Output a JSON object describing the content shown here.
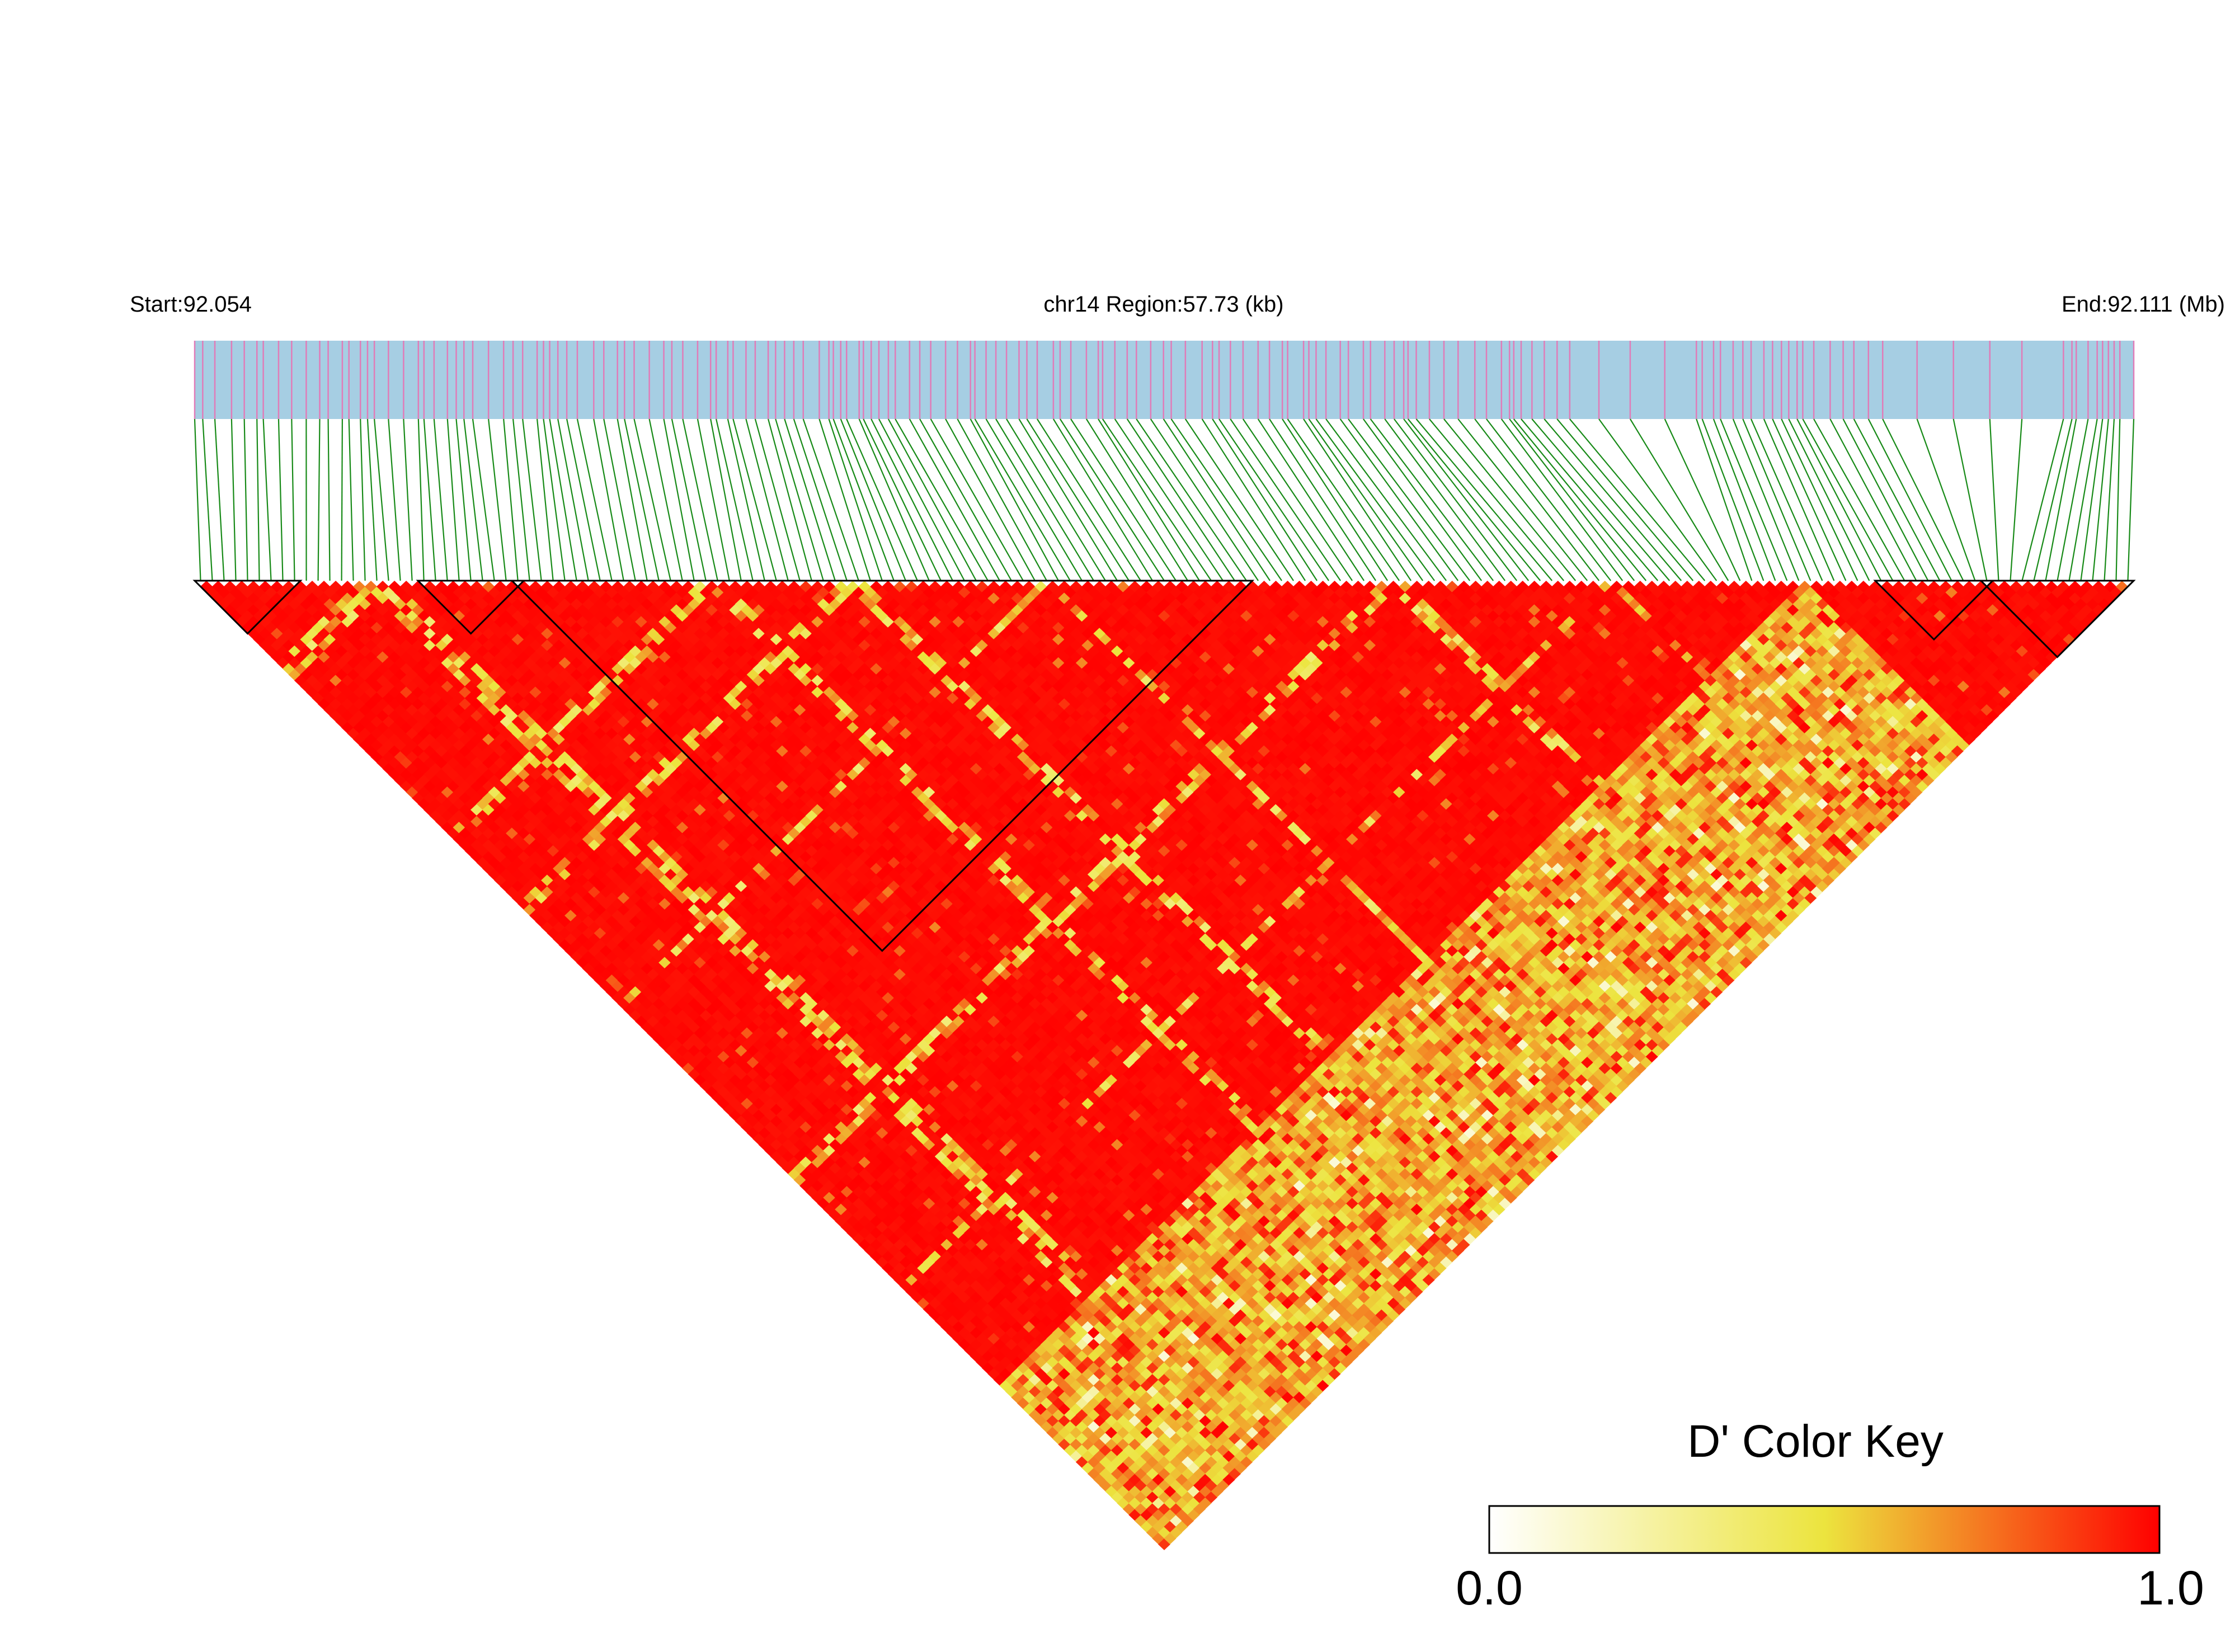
{
  "header": {
    "start_label": "Start:92.054",
    "region_label": "chr14 Region:57.73 (kb)",
    "end_label": "End:92.111 (Mb)"
  },
  "color_key": {
    "title": "D' Color Key",
    "min_label": "0.0",
    "max_label": "1.0",
    "low_color": "#ffffff",
    "mid_color": "#ece43e",
    "high_color": "#ff0000"
  },
  "colors": {
    "track_background": "#a6cee3",
    "snp_tick": "#e07cb8",
    "connector_line": "#178a17",
    "block_outline": "#000000"
  },
  "chart_data": {
    "type": "heatmap",
    "metric": "D'",
    "chromosome": "chr14",
    "start_mb": 92.054,
    "end_mb": 92.111,
    "region_kb": 57.73,
    "value_range": [
      0.0,
      1.0
    ]
  }
}
